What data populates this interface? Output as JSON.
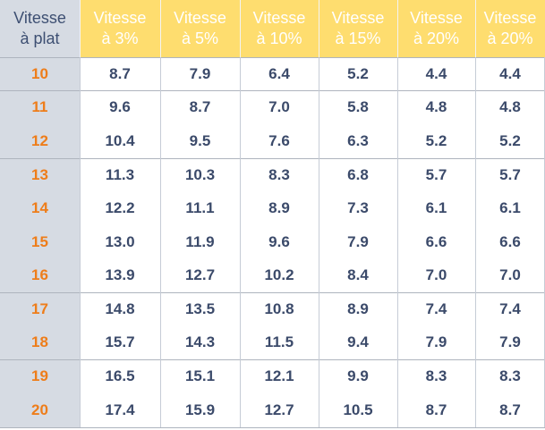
{
  "table": {
    "corner": [
      "Vitesse",
      "à plat"
    ],
    "columns": [
      [
        "Vitesse",
        "à 3%"
      ],
      [
        "Vitesse",
        "à 5%"
      ],
      [
        "Vitesse",
        "à 10%"
      ],
      [
        "Vitesse",
        "à 15%"
      ],
      [
        "Vitesse",
        "à 20%"
      ],
      [
        "Vitesse",
        "à 20%"
      ]
    ],
    "rows": [
      {
        "speed": "10",
        "values": [
          "8.7",
          "7.9",
          "6.4",
          "5.2",
          "4.4",
          "4.4"
        ]
      },
      {
        "speed": "11",
        "values": [
          "9.6",
          "8.7",
          "7.0",
          "5.8",
          "4.8",
          "4.8"
        ]
      },
      {
        "speed": "12",
        "values": [
          "10.4",
          "9.5",
          "7.6",
          "6.3",
          "5.2",
          "5.2"
        ]
      },
      {
        "speed": "13",
        "values": [
          "11.3",
          "10.3",
          "8.3",
          "6.8",
          "5.7",
          "5.7"
        ]
      },
      {
        "speed": "14",
        "values": [
          "12.2",
          "11.1",
          "8.9",
          "7.3",
          "6.1",
          "6.1"
        ]
      },
      {
        "speed": "15",
        "values": [
          "13.0",
          "11.9",
          "9.6",
          "7.9",
          "6.6",
          "6.6"
        ]
      },
      {
        "speed": "16",
        "values": [
          "13.9",
          "12.7",
          "10.2",
          "8.4",
          "7.0",
          "7.0"
        ]
      },
      {
        "speed": "17",
        "values": [
          "14.8",
          "13.5",
          "10.8",
          "8.9",
          "7.4",
          "7.4"
        ]
      },
      {
        "speed": "18",
        "values": [
          "15.7",
          "14.3",
          "11.5",
          "9.4",
          "7.9",
          "7.9"
        ]
      },
      {
        "speed": "19",
        "values": [
          "16.5",
          "15.1",
          "12.1",
          "9.9",
          "8.3",
          "8.3"
        ]
      },
      {
        "speed": "20",
        "values": [
          "17.4",
          "15.9",
          "12.7",
          "10.5",
          "8.7",
          "8.7"
        ]
      }
    ]
  },
  "colors": {
    "header_background": "#fedd6f",
    "header_text": "#ffffff",
    "row_header_background": "#d6dbe3",
    "row_header_text": "#ee7d1a",
    "value_text": "#3b4a6a"
  }
}
